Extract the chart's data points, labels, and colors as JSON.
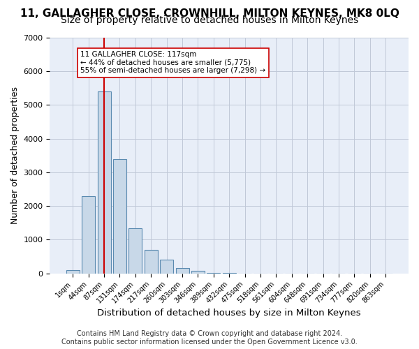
{
  "title1": "11, GALLAGHER CLOSE, CROWNHILL, MILTON KEYNES, MK8 0LQ",
  "title2": "Size of property relative to detached houses in Milton Keynes",
  "xlabel": "Distribution of detached houses by size in Milton Keynes",
  "ylabel": "Number of detached properties",
  "footer": "Contains HM Land Registry data © Crown copyright and database right 2024.\nContains public sector information licensed under the Open Government Licence v3.0.",
  "bin_labels": [
    "1sqm",
    "44sqm",
    "87sqm",
    "131sqm",
    "174sqm",
    "217sqm",
    "260sqm",
    "303sqm",
    "346sqm",
    "389sqm",
    "432sqm",
    "475sqm",
    "518sqm",
    "561sqm",
    "604sqm",
    "648sqm",
    "691sqm",
    "734sqm",
    "777sqm",
    "820sqm",
    "863sqm"
  ],
  "bar_values": [
    100,
    2300,
    5400,
    3400,
    1350,
    700,
    400,
    160,
    80,
    20,
    5,
    2,
    1,
    0,
    0,
    0,
    0,
    0,
    0,
    0,
    0
  ],
  "bar_color": "#c8d8e8",
  "bar_edgecolor": "#5a8ab0",
  "vline_x": 2.0,
  "vline_color": "#cc0000",
  "annotation_text": "11 GALLAGHER CLOSE: 117sqm\n← 44% of detached houses are smaller (5,775)\n55% of semi-detached houses are larger (7,298) →",
  "annotation_box_color": "#ffffff",
  "annotation_box_edgecolor": "#cc0000",
  "ylim": [
    0,
    7000
  ],
  "yticks": [
    0,
    1000,
    2000,
    3000,
    4000,
    5000,
    6000,
    7000
  ],
  "grid_color": "#c0c8d8",
  "bg_color": "#e8eef8",
  "title1_fontsize": 11,
  "title2_fontsize": 10,
  "xlabel_fontsize": 9.5,
  "ylabel_fontsize": 9,
  "footer_fontsize": 7
}
